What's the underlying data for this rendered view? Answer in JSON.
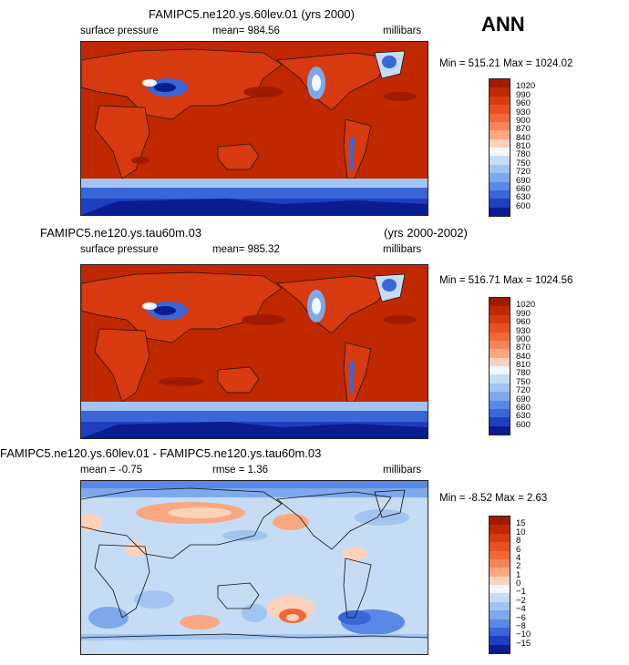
{
  "season": "ANN",
  "panels": [
    {
      "title": "FAMIPC5.ne120.ys.60lev.01 (yrs 2000)",
      "variable": "surface pressure",
      "mean": "mean= 984.56",
      "units": "millibars",
      "minmax": "Min = 515.21  Max = 1024.02",
      "levels": [
        "1020",
        "990",
        "960",
        "930",
        "900",
        "870",
        "840",
        "810",
        "780",
        "750",
        "720",
        "690",
        "660",
        "630",
        "600"
      ],
      "colors": [
        "#a01a00",
        "#c02800",
        "#d83a10",
        "#e85024",
        "#f06838",
        "#f5845a",
        "#f9a882",
        "#fcd2bc",
        "#f4f8fc",
        "#c6dcf4",
        "#a2c4f0",
        "#7ea8ec",
        "#5a88e6",
        "#3a66d8",
        "#1e40c0",
        "#0a1c90"
      ]
    },
    {
      "title_left": "FAMIPC5.ne120.ys.tau60m.03",
      "title_right": "(yrs 2000-2002)",
      "variable": "surface pressure",
      "mean": "mean= 985.32",
      "units": "millibars",
      "minmax": "Min = 516.71  Max = 1024.56",
      "levels": [
        "1020",
        "990",
        "960",
        "930",
        "900",
        "870",
        "840",
        "810",
        "780",
        "750",
        "720",
        "690",
        "660",
        "630",
        "600"
      ],
      "colors": [
        "#a01a00",
        "#c02800",
        "#d83a10",
        "#e85024",
        "#f06838",
        "#f5845a",
        "#f9a882",
        "#fcd2bc",
        "#f4f8fc",
        "#c6dcf4",
        "#a2c4f0",
        "#7ea8ec",
        "#5a88e6",
        "#3a66d8",
        "#1e40c0",
        "#0a1c90"
      ]
    },
    {
      "title": "FAMIPC5.ne120.ys.60lev.01 - FAMIPC5.ne120.ys.tau60m.03",
      "mean": "mean =   -0.75",
      "rmse": "rmse =    1.36",
      "units": "millibars",
      "minmax": "Min =  -8.52  Max =    2.63",
      "levels": [
        "15",
        "10",
        "8",
        "6",
        "4",
        "2",
        "1",
        "0",
        "−1",
        "−2",
        "−4",
        "−6",
        "−8",
        "−10",
        "−15"
      ],
      "colors": [
        "#a01a00",
        "#c02800",
        "#d83a10",
        "#e85024",
        "#f06838",
        "#f5845a",
        "#f9a882",
        "#fcd2bc",
        "#f4f8fc",
        "#c6dcf4",
        "#a2c4f0",
        "#7ea8ec",
        "#5a88e6",
        "#3a66d8",
        "#1e40c0",
        "#0a1c90"
      ]
    }
  ]
}
